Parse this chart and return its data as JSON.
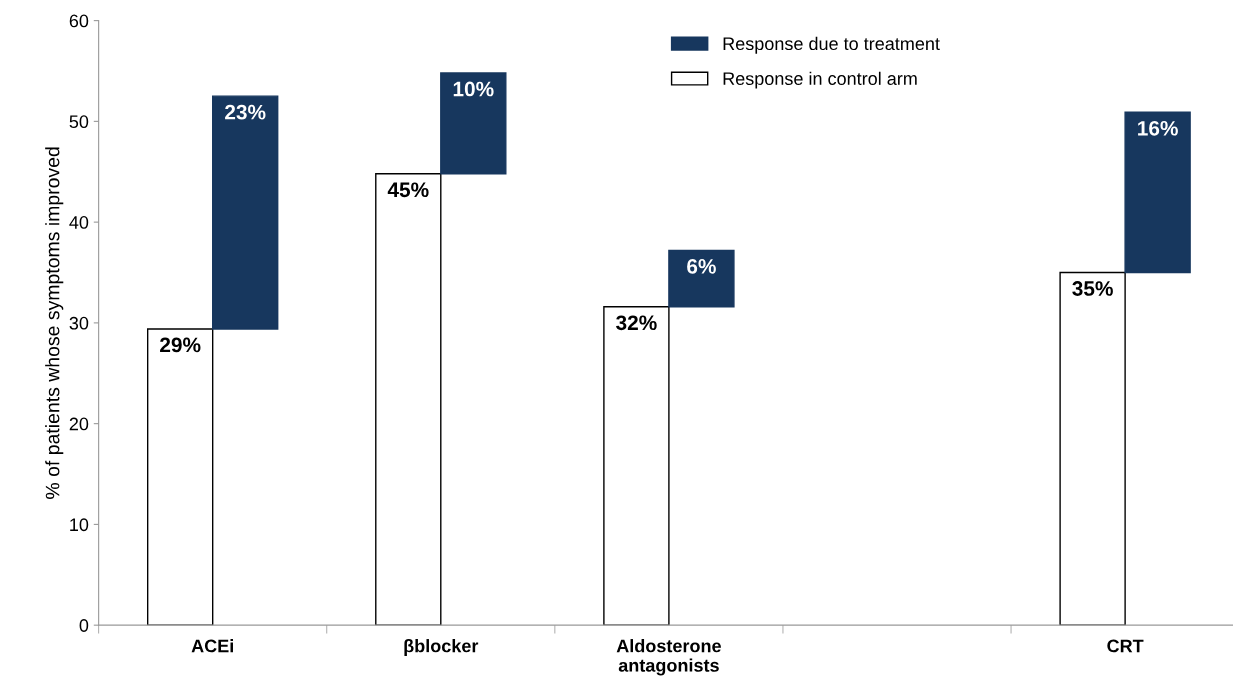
{
  "chart_data": {
    "type": "bar",
    "ylabel": "% of patients whose symptoms improved",
    "categories": [
      "ACEi",
      "βblocker",
      "Aldosterone\nantagonists",
      null,
      "CRT"
    ],
    "series": [
      {
        "name": "Response in control arm",
        "color": "#ffffff",
        "values": [
          29.4,
          44.8,
          31.6,
          null,
          35.0
        ],
        "value_labels": [
          "29%",
          "45%",
          "32%",
          null,
          "35%"
        ]
      },
      {
        "name": "Response due to treatment",
        "color": "#17375e",
        "base": [
          29.4,
          44.8,
          31.6,
          null,
          35.0
        ],
        "values": [
          23.1,
          10.0,
          5.6,
          null,
          15.9
        ],
        "value_labels": [
          "23%",
          "10%",
          "6%",
          null,
          "16%"
        ]
      }
    ],
    "ylim": [
      0,
      60
    ],
    "yticks": [
      0,
      10,
      20,
      30,
      40,
      50,
      60
    ],
    "grid": false,
    "legend": "top"
  }
}
